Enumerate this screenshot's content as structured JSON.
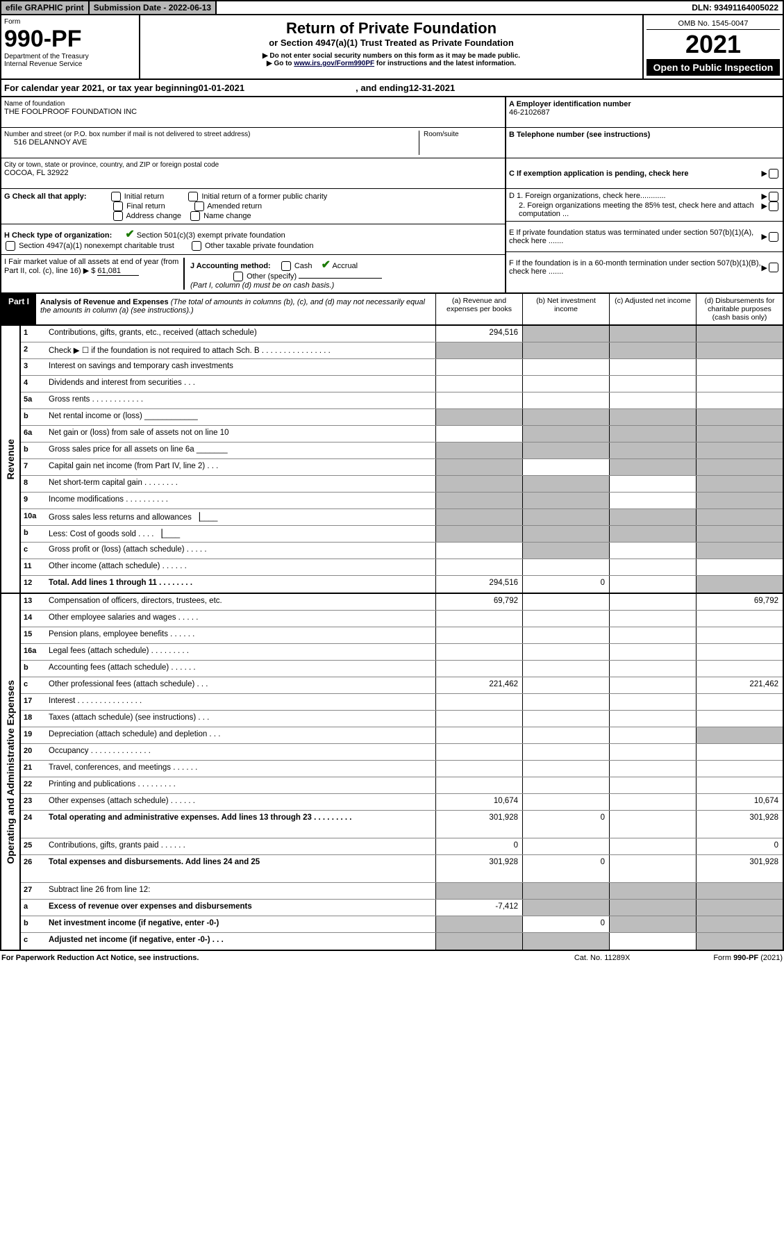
{
  "topbar": {
    "efile": "efile GRAPHIC print",
    "subdate_label": "Submission Date - ",
    "subdate": "2022-06-13",
    "dln_label": "DLN: ",
    "dln": "93491164005022"
  },
  "header": {
    "form_label": "Form",
    "form_no": "990-PF",
    "dept": "Department of the Treasury",
    "irs": "Internal Revenue Service",
    "title": "Return of Private Foundation",
    "subtitle": "or Section 4947(a)(1) Trust Treated as Private Foundation",
    "note1": "▶ Do not enter social security numbers on this form as it may be made public.",
    "note2_pre": "▶ Go to ",
    "note2_link": "www.irs.gov/Form990PF",
    "note2_post": " for instructions and the latest information.",
    "omb": "OMB No. 1545-0047",
    "year": "2021",
    "open": "Open to Public Inspection"
  },
  "cal": {
    "pre": "For calendar year 2021, or tax year beginning ",
    "begin": "01-01-2021",
    "mid": ", and ending ",
    "end": "12-31-2021"
  },
  "foundation": {
    "name_label": "Name of foundation",
    "name": "THE FOOLPROOF FOUNDATION INC",
    "street_label": "Number and street (or P.O. box number if mail is not delivered to street address)",
    "street": "516 DELANNOY AVE",
    "room_label": "Room/suite",
    "city_label": "City or town, state or province, country, and ZIP or foreign postal code",
    "city": "COCOA, FL  32922"
  },
  "right": {
    "a_label": "A Employer identification number",
    "a_val": "46-2102687",
    "b_label": "B Telephone number (see instructions)",
    "c_label": "C If exemption application is pending, check here",
    "d1": "D 1. Foreign organizations, check here............",
    "d2": "2. Foreign organizations meeting the 85% test, check here and attach computation ...",
    "e": "E  If private foundation status was terminated under section 507(b)(1)(A), check here .......",
    "f": "F  If the foundation is in a 60-month termination under section 507(b)(1)(B), check here .......",
    "arrow": "▶"
  },
  "g": {
    "label": "G Check all that apply:",
    "o1": "Initial return",
    "o2": "Initial return of a former public charity",
    "o3": "Final return",
    "o4": "Amended return",
    "o5": "Address change",
    "o6": "Name change"
  },
  "h": {
    "label": "H Check type of organization:",
    "o1": "Section 501(c)(3) exempt private foundation",
    "o2": "Section 4947(a)(1) nonexempt charitable trust",
    "o3": "Other taxable private foundation"
  },
  "i": {
    "label": "I Fair market value of all assets at end of year (from Part II, col. (c), line 16) ▶ $",
    "val": "61,081"
  },
  "j": {
    "label": "J Accounting method:",
    "cash": "Cash",
    "accrual": "Accrual",
    "other": "Other (specify)",
    "note": "(Part I, column (d) must be on cash basis.)"
  },
  "part1": {
    "tag": "Part I",
    "title": "Analysis of Revenue and Expenses",
    "title_note": " (The total of amounts in columns (b), (c), and (d) may not necessarily equal the amounts in column (a) (see instructions).)",
    "col_a": "(a)   Revenue and expenses per books",
    "col_b": "(b)   Net investment income",
    "col_c": "(c)   Adjusted net income",
    "col_d": "(d)   Disbursements for charitable purposes (cash basis only)"
  },
  "side_rev": "Revenue",
  "side_exp": "Operating and Administrative Expenses",
  "rows_rev": [
    {
      "n": "1",
      "d": "Contributions, gifts, grants, etc., received (attach schedule)",
      "a": "294,516",
      "bg": [
        false,
        true,
        true,
        true
      ]
    },
    {
      "n": "2",
      "d": "Check ▶ ☐ if the foundation is not required to attach Sch. B    .  .  .  .  .  .  .  .  .  .  .  .  .  .  .  .",
      "bg": [
        true,
        true,
        true,
        true
      ]
    },
    {
      "n": "3",
      "d": "Interest on savings and temporary cash investments"
    },
    {
      "n": "4",
      "d": "Dividends and interest from securities     .   .   ."
    },
    {
      "n": "5a",
      "d": "Gross rents     .   .   .   .   .   .   .   .   .   .   .   ."
    },
    {
      "n": "b",
      "d": "Net rental income or (loss)   ____________",
      "bg": [
        true,
        true,
        true,
        true
      ]
    },
    {
      "n": "6a",
      "d": "Net gain or (loss) from sale of assets not on line 10",
      "bg": [
        false,
        true,
        true,
        true
      ]
    },
    {
      "n": "b",
      "d": "Gross sales price for all assets on line 6a _______",
      "bg": [
        true,
        true,
        true,
        true
      ]
    },
    {
      "n": "7",
      "d": "Capital gain net income (from Part IV, line 2)    .   .   .",
      "bg": [
        true,
        false,
        true,
        true
      ]
    },
    {
      "n": "8",
      "d": "Net short-term capital gain  .   .   .   .   .   .   .   .",
      "bg": [
        true,
        true,
        false,
        true
      ]
    },
    {
      "n": "9",
      "d": "Income modifications .   .   .   .   .   .   .   .   .   .",
      "bg": [
        true,
        true,
        false,
        true
      ]
    },
    {
      "n": "10a",
      "d": "Gross sales less returns and allowances  ▕____",
      "bg": [
        true,
        true,
        true,
        true
      ]
    },
    {
      "n": "b",
      "d": "Less: Cost of goods sold    .   .   .   .   ▕____",
      "bg": [
        true,
        true,
        true,
        true
      ]
    },
    {
      "n": "c",
      "d": "Gross profit or (loss) (attach schedule)    .   .   .   .   .",
      "bg": [
        false,
        true,
        false,
        true
      ]
    },
    {
      "n": "11",
      "d": "Other income (attach schedule)    .   .   .   .   .   ."
    },
    {
      "n": "12",
      "d": "Total. Add lines 1 through 11   .   .   .   .   .   .   .   .",
      "a": "294,516",
      "b": "0",
      "bg": [
        false,
        false,
        false,
        true
      ],
      "bold": true
    }
  ],
  "rows_exp": [
    {
      "n": "13",
      "d": "Compensation of officers, directors, trustees, etc.",
      "a": "69,792",
      "dd": "69,792"
    },
    {
      "n": "14",
      "d": "Other employee salaries and wages   .   .   .   .   ."
    },
    {
      "n": "15",
      "d": "Pension plans, employee benefits  .   .   .   .   .   ."
    },
    {
      "n": "16a",
      "d": "Legal fees (attach schedule) .   .   .   .   .   .   .   .   ."
    },
    {
      "n": "b",
      "d": "Accounting fees (attach schedule)  .   .   .   .   .   ."
    },
    {
      "n": "c",
      "d": "Other professional fees (attach schedule)    .   .   .",
      "a": "221,462",
      "dd": "221,462"
    },
    {
      "n": "17",
      "d": "Interest .   .   .   .   .   .   .   .   .   .   .   .   .   .   ."
    },
    {
      "n": "18",
      "d": "Taxes (attach schedule) (see instructions)     .   .   ."
    },
    {
      "n": "19",
      "d": "Depreciation (attach schedule) and depletion    .   .   .",
      "bg": [
        false,
        false,
        false,
        true
      ]
    },
    {
      "n": "20",
      "d": "Occupancy .   .   .   .   .   .   .   .   .   .   .   .   .   ."
    },
    {
      "n": "21",
      "d": "Travel, conferences, and meetings .   .   .   .   .   ."
    },
    {
      "n": "22",
      "d": "Printing and publications .   .   .   .   .   .   .   .   ."
    },
    {
      "n": "23",
      "d": "Other expenses (attach schedule) .   .   .   .   .   .",
      "a": "10,674",
      "dd": "10,674"
    },
    {
      "n": "24",
      "d": "Total operating and administrative expenses. Add lines 13 through 23   .   .   .   .   .   .   .   .   .",
      "a": "301,928",
      "b": "0",
      "dd": "301,928",
      "bold": true,
      "tall": true
    },
    {
      "n": "25",
      "d": "Contributions, gifts, grants paid     .   .   .   .   .   .",
      "a": "0",
      "dd": "0"
    },
    {
      "n": "26",
      "d": "Total expenses and disbursements. Add lines 24 and 25",
      "a": "301,928",
      "b": "0",
      "dd": "301,928",
      "bold": true,
      "tall": true
    },
    {
      "n": "27",
      "d": "Subtract line 26 from line 12:",
      "bg": [
        true,
        true,
        true,
        true
      ]
    },
    {
      "n": "a",
      "d": "Excess of revenue over expenses and disbursements",
      "a": "-7,412",
      "bg": [
        false,
        true,
        true,
        true
      ],
      "bold": true
    },
    {
      "n": "b",
      "d": "Net investment income (if negative, enter -0-)",
      "b": "0",
      "bg": [
        true,
        false,
        true,
        true
      ],
      "bold": true
    },
    {
      "n": "c",
      "d": "Adjusted net income (if negative, enter -0-)   .   .   .",
      "bg": [
        true,
        true,
        false,
        true
      ],
      "bold": true
    }
  ],
  "footer": {
    "left": "For Paperwork Reduction Act Notice, see instructions.",
    "mid": "Cat. No. 11289X",
    "right": "Form 990-PF (2021)"
  }
}
